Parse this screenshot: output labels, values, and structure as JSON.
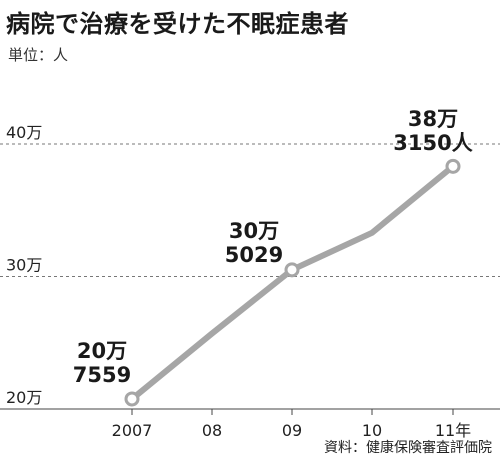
{
  "title": "病院で治療を受けた不眠症患者",
  "unit_label": "単位：人",
  "source": "資料：健康保険審査評価院",
  "chart_data": {
    "type": "line",
    "title": "病院で治療を受けた不眠症患者",
    "xlabel": "",
    "ylabel": "",
    "x": [
      "2007",
      "08",
      "09",
      "10",
      "11年"
    ],
    "series": [
      {
        "values": [
          207559,
          257000,
          305029,
          333000,
          383150
        ]
      }
    ],
    "ylim": [
      200000,
      400000
    ],
    "y_ticks": [
      {
        "value": 200000,
        "label": "20万"
      },
      {
        "value": 300000,
        "label": "30万"
      },
      {
        "value": 400000,
        "label": "40万"
      }
    ],
    "data_labels": [
      {
        "index": 0,
        "lines": [
          "20万",
          "7559"
        ]
      },
      {
        "index": 2,
        "lines": [
          "30万",
          "5029"
        ]
      },
      {
        "index": 4,
        "lines": [
          "38万",
          "3150人"
        ]
      }
    ],
    "line_color": "#a6a6a6",
    "marker_fill": "#ffffff",
    "grid": "horizontal dashed"
  }
}
